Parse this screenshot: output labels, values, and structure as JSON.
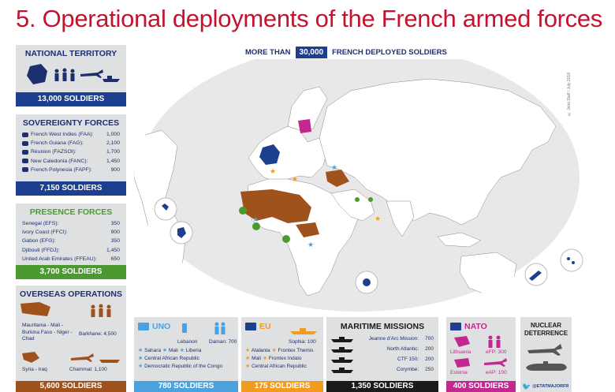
{
  "title": "5. Operational deployments of the French armed forces",
  "headline": {
    "prefix": "MORE THAN",
    "value": "30,000",
    "suffix": "FRENCH DEPLOYED SOLDIERS"
  },
  "credit": "© Joint Staff / July 2018",
  "national": {
    "head": "NATIONAL TERRITORY",
    "foot": "13,000 SOLDIERS"
  },
  "sovereignty": {
    "head": "SOVEREIGNTY FORCES",
    "rows": [
      {
        "label": "French West Indies (FAA):",
        "value": "1,000"
      },
      {
        "label": "French Guiana (FAG):",
        "value": "2,100"
      },
      {
        "label": "Réunion (FAZSOI):",
        "value": "1,700"
      },
      {
        "label": "New Caledonia (FANC):",
        "value": "1,450"
      },
      {
        "label": "French Polynesia (FAPF):",
        "value": "900"
      }
    ],
    "foot": "7,150 SOLDIERS"
  },
  "presence": {
    "head": "PRESENCE FORCES",
    "rows": [
      {
        "label": "Senegal (EFS):",
        "value": "350"
      },
      {
        "label": "Ivory Coast (FFCI):",
        "value": "900"
      },
      {
        "label": "Gabon (EFG):",
        "value": "350"
      },
      {
        "label": "Djibouti (FFDJ):",
        "value": "1,450"
      },
      {
        "label": "United Arab Emirates (FFEAU):",
        "value": "650"
      }
    ],
    "foot": "3,700 SOLDIERS"
  },
  "overseas": {
    "head": "OVERSEAS OPERATIONS",
    "barkhane_area": "Mauritania - Mali - Burkina Faso - Niger - Chad",
    "barkhane": "Barkhane: 4,500",
    "syria": "Syria - Iraq",
    "chammal": "Chammal: 1,100",
    "foot": "5,600 SOLDIERS"
  },
  "uno": {
    "head": "UNO",
    "lebanon": "Lebanon",
    "daman": "Daman: 700",
    "items": [
      "Sahara",
      "Mali",
      "Liberia",
      "Central African Republic",
      "Democratic Republic of the Congo"
    ],
    "foot": "780 SOLDIERS"
  },
  "eu": {
    "head": "EU",
    "sophia": "Sophia: 100",
    "items": [
      "Atalanta",
      "Frontex Themis",
      "Mali",
      "Frontex Indalo",
      "Central African Republic"
    ],
    "foot": "175 SOLDIERS"
  },
  "maritime": {
    "head": "MARITIME MISSIONS",
    "rows": [
      {
        "label": "Jeanne d'Arc Mission:",
        "value": "700"
      },
      {
        "label": "North Atlantic:",
        "value": "200"
      },
      {
        "label": "CTF 150:",
        "value": "200"
      },
      {
        "label": "Corymbe:",
        "value": "250"
      }
    ],
    "foot": "1,350 SOLDIERS"
  },
  "nato": {
    "head": "NATO",
    "lithuania": "Lithuania",
    "efp300": "eFP: 300",
    "estonia": "Estonia",
    "eap100": "eAP: 100",
    "foot": "400 SOLDIERS"
  },
  "nuclear": {
    "head1": "NUCLEAR",
    "head2": "DETERRENCE",
    "handle": "@ETATMAJORFR"
  },
  "colors": {
    "navy": "#1d3f8f",
    "green": "#4b9a2f",
    "brown": "#a0521d",
    "orange": "#f29c1f",
    "blue": "#4aa3df",
    "black": "#1a1a1a",
    "magenta": "#c2288f",
    "red": "#c4122f"
  }
}
